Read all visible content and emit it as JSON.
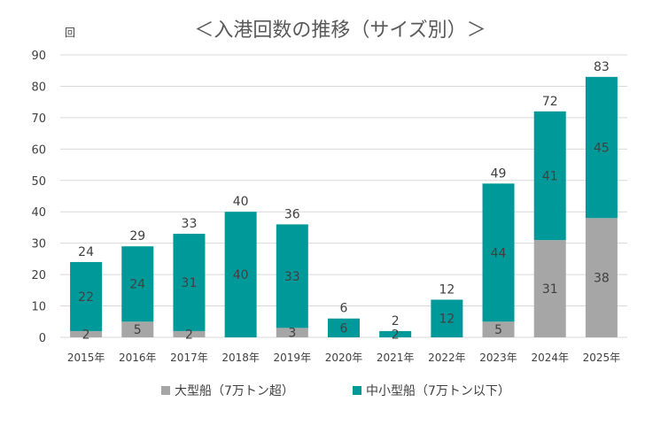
{
  "chart_data": {
    "type": "bar",
    "stacked": true,
    "title": "＜入港回数の推移（サイズ別）＞",
    "ylabel": "回",
    "ylim": [
      0,
      90
    ],
    "yticks": [
      0,
      10,
      20,
      30,
      40,
      50,
      60,
      70,
      80,
      90
    ],
    "categories": [
      "2015年",
      "2016年",
      "2017年",
      "2018年",
      "2019年",
      "2020年",
      "2021年",
      "2022年",
      "2023年",
      "2024年",
      "2025年"
    ],
    "series": [
      {
        "name": "大型船（7万トン超）",
        "color": "#a6a6a6",
        "values": [
          2,
          5,
          2,
          0,
          3,
          0,
          0,
          0,
          5,
          31,
          38
        ]
      },
      {
        "name": "中小型船（7万トン以下）",
        "color": "#009999",
        "values": [
          22,
          24,
          31,
          40,
          33,
          6,
          2,
          12,
          44,
          41,
          45
        ]
      }
    ],
    "totals": [
      24,
      29,
      33,
      40,
      36,
      6,
      2,
      12,
      49,
      72,
      83
    ],
    "legend_position": "bottom"
  }
}
